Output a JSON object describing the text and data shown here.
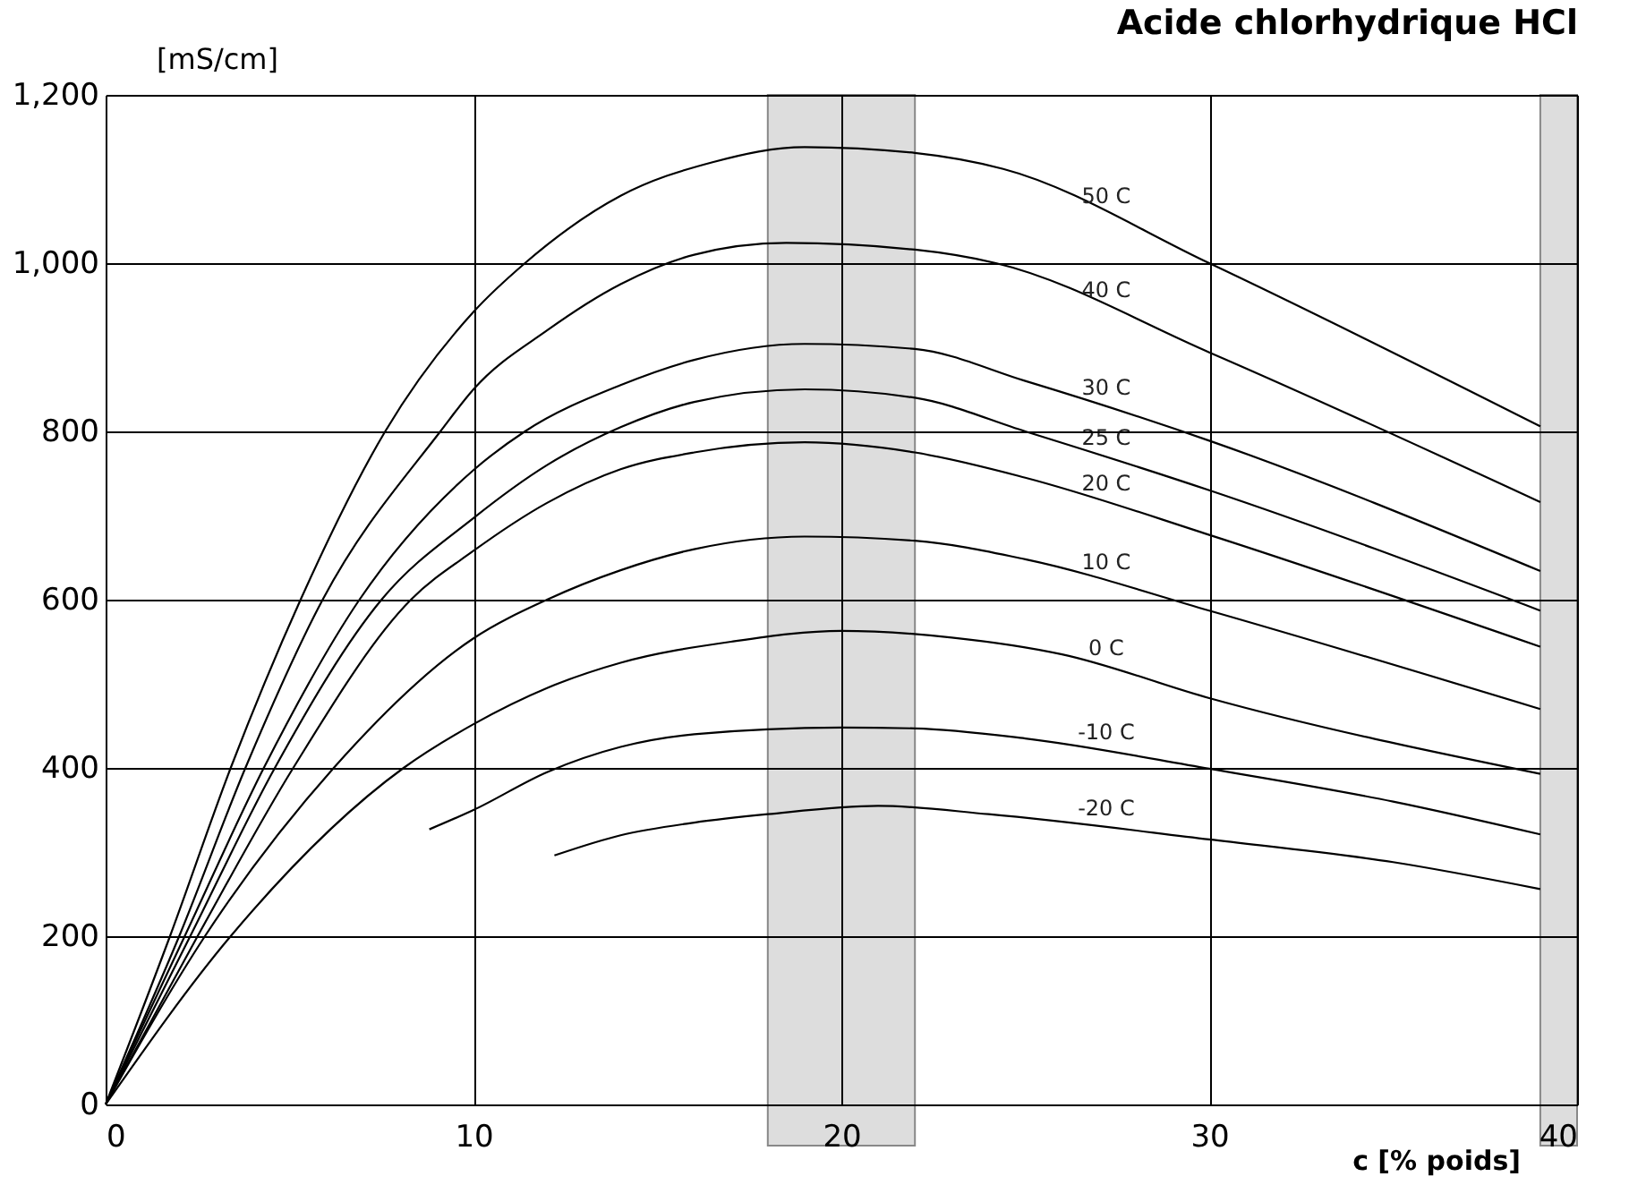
{
  "chart_data": {
    "type": "line",
    "title": "Acide chlorhydrique  HCl",
    "xlabel": "c [% poids]",
    "ylabel": "[mS/cm]",
    "xlim": [
      0,
      40
    ],
    "xticks": [
      0,
      10,
      20,
      30,
      40
    ],
    "ylim": [
      0,
      1200
    ],
    "yticks": [
      0,
      200,
      400,
      600,
      800,
      {
        "value": 1000,
        "label": "1,000"
      },
      {
        "value": 1200,
        "label": "1,200"
      }
    ],
    "grid": true,
    "marker": "none",
    "line_style": "solid",
    "series": [
      {
        "name": "50  C",
        "color": "#000000",
        "x": [
          0,
          1.75,
          3.4,
          5.3,
          7.6,
          10,
          11.4,
          14,
          16.5,
          19,
          22,
          24.4,
          30,
          39
        ],
        "values": [
          0,
          200,
          400,
          600,
          800,
          942,
          1000,
          1080,
          1120,
          1138,
          1131,
          1112,
          1000,
          806
        ]
      },
      {
        "name": "40  C",
        "color": "#000000",
        "x": [
          0,
          2,
          3.8,
          5.9,
          9.1,
          10,
          12,
          14,
          16,
          18.5,
          22,
          24.2,
          30,
          39
        ],
        "values": [
          0,
          200,
          400,
          600,
          800,
          850,
          920,
          975,
          1010,
          1024,
          1016,
          1000,
          894,
          716
        ]
      },
      {
        "name": "30  C",
        "color": "#000000",
        "x": [
          0,
          2.15,
          4.3,
          6.9,
          10,
          11.4,
          14,
          16,
          19,
          22,
          25,
          30,
          39
        ],
        "values": [
          0,
          200,
          400,
          600,
          754,
          800,
          855,
          885,
          904,
          898,
          860,
          789,
          634
        ]
      },
      {
        "name": "25  C",
        "color": "#000000",
        "x": [
          0,
          2.3,
          4.6,
          7.5,
          10,
          12,
          14,
          16,
          19,
          22,
          25,
          30,
          39
        ],
        "values": [
          0,
          200,
          400,
          600,
          697,
          760,
          805,
          835,
          850,
          840,
          800,
          730,
          587
        ]
      },
      {
        "name": "20  C",
        "color": "#000000",
        "x": [
          0,
          2.5,
          5.1,
          8.3,
          10,
          12,
          14,
          16,
          19,
          22,
          25,
          30,
          39
        ],
        "values": [
          0,
          200,
          400,
          600,
          658,
          715,
          755,
          775,
          787,
          775,
          745,
          677,
          544
        ]
      },
      {
        "name": "10  C",
        "color": "#000000",
        "x": [
          0,
          2.7,
          6.2,
          10,
          12,
          14,
          16,
          19,
          22,
          25,
          30,
          39
        ],
        "values": [
          0,
          200,
          400,
          554,
          600,
          635,
          660,
          675,
          670,
          648,
          587,
          470
        ]
      },
      {
        "name": "0  C",
        "color": "#000000",
        "x": [
          0,
          3.4,
          8.1,
          10,
          12,
          14,
          17,
          20,
          23,
          26,
          30,
          39
        ],
        "values": [
          0,
          200,
          400,
          452,
          495,
          525,
          550,
          563,
          555,
          535,
          483,
          393
        ]
      },
      {
        "name": "-10  C",
        "color": "#000000",
        "x": [
          8.8,
          10,
          12,
          14,
          16,
          20,
          22,
          25,
          30,
          35,
          39
        ],
        "values": [
          327,
          350,
          395,
          425,
          440,
          448,
          447,
          435,
          399,
          360,
          321
        ]
      },
      {
        "name": "-20  C",
        "color": "#000000",
        "x": [
          12.2,
          14,
          16,
          18,
          21,
          24,
          30,
          35,
          39
        ],
        "values": [
          296,
          320,
          335,
          345,
          355,
          345,
          315,
          288,
          256
        ]
      }
    ],
    "bands": [
      {
        "axis": "x",
        "from": 18,
        "to": 22,
        "color": "#dddddd"
      },
      {
        "axis": "x",
        "from": 39,
        "to": 40,
        "color": "#dddddd"
      }
    ]
  }
}
